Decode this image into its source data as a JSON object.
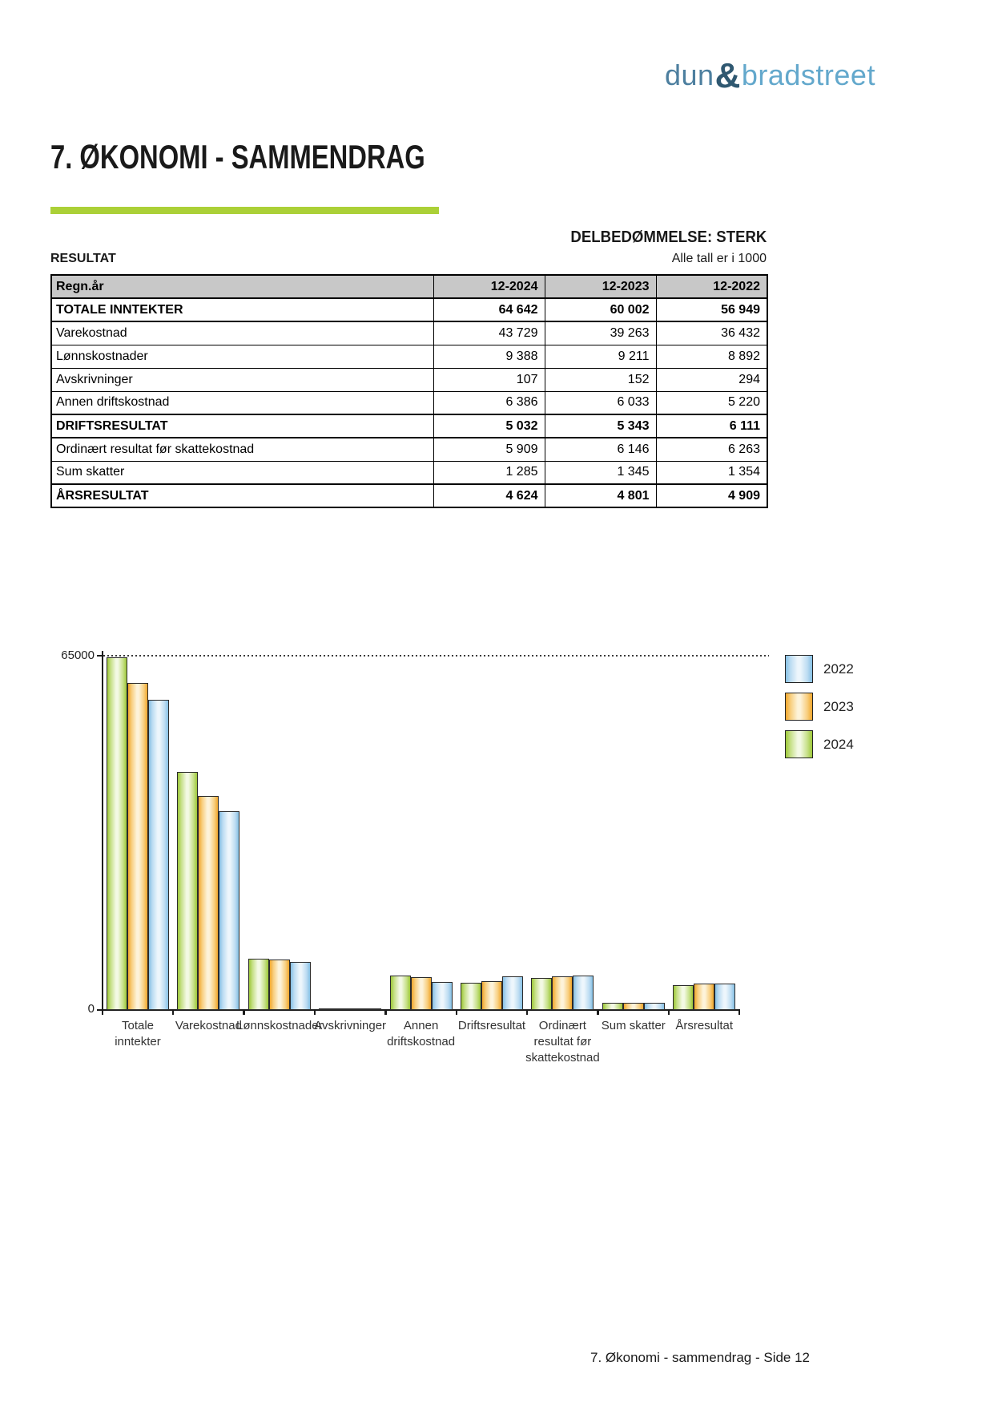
{
  "logo": {
    "dun": "dun",
    "amp": "&",
    "bradstreet": "bradstreet"
  },
  "page": {
    "title": "7. ØKONOMI - SAMMENDRAG",
    "assessment": "DELBEDØMMELSE: STERK",
    "section_label": "RESULTAT",
    "units_note": "Alle tall er i 1000",
    "footer": "7. Økonomi - sammendrag - Side 12"
  },
  "colors": {
    "accent_green_rule": "#abd037",
    "table_header_gray": "#c8c8c8",
    "logo_dun_blue": "#4d7f9f",
    "logo_amp_blue": "#2f5871",
    "logo_brad_blue": "#63a8cc",
    "bar_border": "#2b2b2b",
    "bar_palette": {
      "green": {
        "edge": "#9dc838",
        "mid": "#c6e087",
        "center": "#f3f9e4"
      },
      "orange": {
        "edge": "#f0a62c",
        "mid": "#f8ce7d",
        "center": "#fdf3da"
      },
      "blue": {
        "edge": "#85c0e4",
        "mid": "#bcdcf2",
        "center": "#edf6fc"
      }
    }
  },
  "table": {
    "columns": [
      "Regn.år",
      "12-2024",
      "12-2023",
      "12-2022"
    ],
    "rows": [
      {
        "label": "TOTALE INNTEKTER",
        "values": [
          "64 642",
          "60 002",
          "56 949"
        ],
        "bold": true
      },
      {
        "label": "Varekostnad",
        "values": [
          "43 729",
          "39 263",
          "36 432"
        ],
        "bold": false
      },
      {
        "label": "Lønnskostnader",
        "values": [
          "9 388",
          "9 211",
          "8 892"
        ],
        "bold": false
      },
      {
        "label": "Avskrivninger",
        "values": [
          "107",
          "152",
          "294"
        ],
        "bold": false
      },
      {
        "label": "Annen driftskostnad",
        "values": [
          "6 386",
          "6 033",
          "5 220"
        ],
        "bold": false
      },
      {
        "label": "DRIFTSRESULTAT",
        "values": [
          "5 032",
          "5 343",
          "6 111"
        ],
        "bold": true
      },
      {
        "label": "Ordinært resultat før skattekostnad",
        "values": [
          "5 909",
          "6 146",
          "6 263"
        ],
        "bold": false
      },
      {
        "label": "Sum skatter",
        "values": [
          "1 285",
          "1 345",
          "1 354"
        ],
        "bold": false
      },
      {
        "label": "ÅRSRESULTAT",
        "values": [
          "4 624",
          "4 801",
          "4 909"
        ],
        "bold": true
      }
    ]
  },
  "chart_data": {
    "type": "bar",
    "title": "",
    "xlabel": "",
    "ylabel": "",
    "ylim": [
      0,
      65000
    ],
    "ytick_labels": [
      "65000",
      "0"
    ],
    "grid": "single dotted horizontal line at y=65000",
    "legend_position": "top-right",
    "categories": [
      [
        "Totale",
        "inntekter"
      ],
      [
        "Varekostnad"
      ],
      [
        "Lønnskostnader"
      ],
      [
        "Avskrivninger"
      ],
      [
        "Annen",
        "driftskostnad"
      ],
      [
        "Driftsresultat"
      ],
      [
        "Ordinært",
        "resultat før",
        "skattekostnad"
      ],
      [
        "Sum skatter"
      ],
      [
        "Årsresultat"
      ]
    ],
    "series": [
      {
        "name": "2024",
        "color_key": "green",
        "values": [
          64642,
          43729,
          9388,
          107,
          6386,
          5032,
          5909,
          1285,
          4624
        ]
      },
      {
        "name": "2023",
        "color_key": "orange",
        "values": [
          60002,
          39263,
          9211,
          152,
          6033,
          5343,
          6146,
          1345,
          4801
        ]
      },
      {
        "name": "2022",
        "color_key": "blue",
        "values": [
          56949,
          36432,
          8892,
          294,
          5220,
          6111,
          6263,
          1354,
          4909
        ]
      }
    ],
    "legend": [
      {
        "label": "2022",
        "color_key": "blue"
      },
      {
        "label": "2023",
        "color_key": "orange"
      },
      {
        "label": "2024",
        "color_key": "green"
      }
    ]
  }
}
